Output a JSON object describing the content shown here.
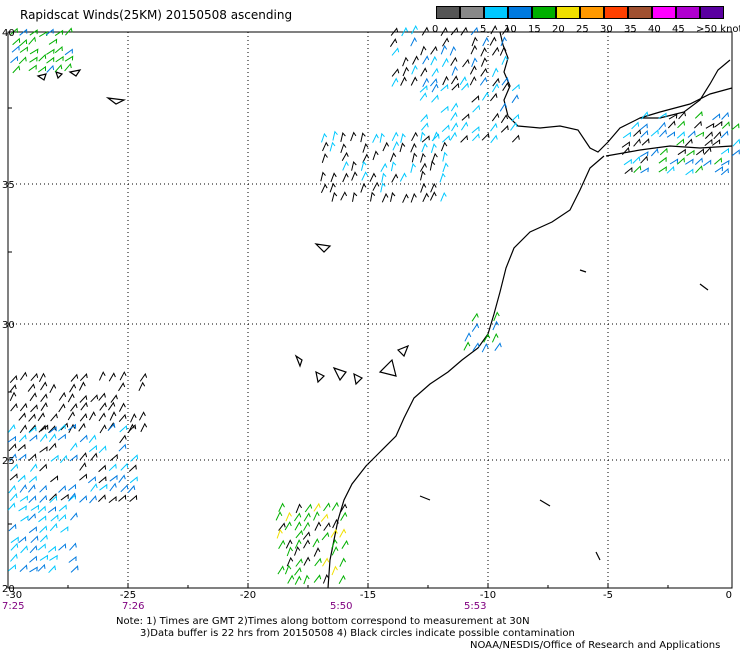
{
  "header": {
    "title": "Rapidscat Winds(25KM) 20150508 ascending"
  },
  "legend": {
    "segments": [
      {
        "color": "#555555",
        "label": "0"
      },
      {
        "color": "#888888",
        "label": ""
      },
      {
        "color": "#00c8ff",
        "label": "5"
      },
      {
        "color": "#007ae0",
        "label": "10"
      },
      {
        "color": "#00b000",
        "label": "15"
      },
      {
        "color": "#f0e000",
        "label": "20"
      },
      {
        "color": "#ff9900",
        "label": "25"
      },
      {
        "color": "#ff4000",
        "label": "30"
      },
      {
        "color": "#a05030",
        "label": "35"
      },
      {
        "color": "#ff00ff",
        "label": "40"
      },
      {
        "color": "#b000d0",
        "label": "45"
      },
      {
        "color": "#5a00a0",
        "label": ">50 knots"
      }
    ]
  },
  "map": {
    "lat_labels": [
      "40",
      "35",
      "30",
      "25",
      "20"
    ],
    "lon_labels": [
      "-30",
      "-25",
      "-20",
      "-15",
      "-10",
      "-5",
      "0"
    ],
    "time_labels": [
      "7:25",
      "7:26",
      "5:50",
      "5:53"
    ],
    "time_color": "#800080"
  },
  "notes": {
    "line1": "Note: 1) Times are GMT 2)Times along bottom correspond to measurement at 30N",
    "line2": "3)Data buffer is 22 hrs from 20150508 4) Black circles indicate possible contamination",
    "credit": "NOAA/NESDIS/Office of Research and Applications"
  }
}
